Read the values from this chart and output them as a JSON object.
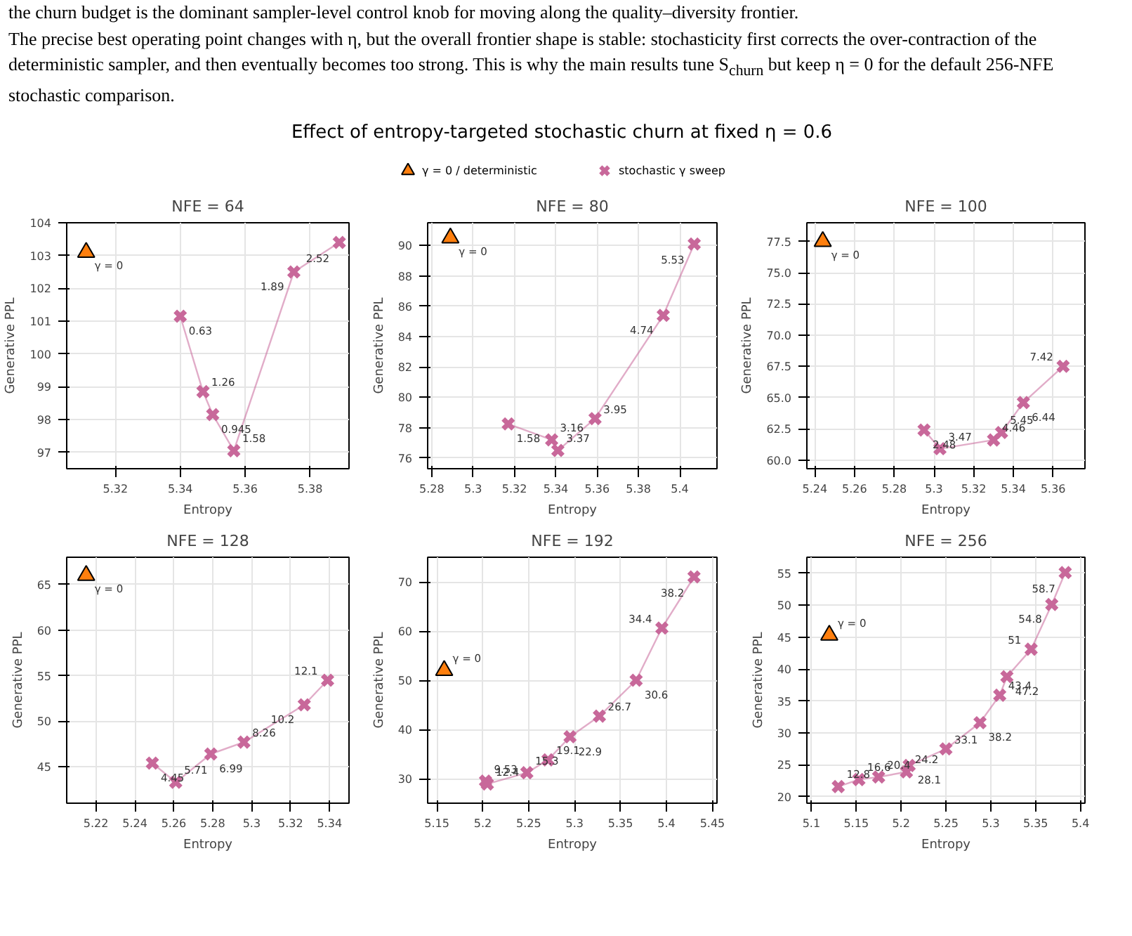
{
  "chart_data": [
    {
      "type": "other",
      "title": "Effect of entropy-targeted stochastic churn at fixed η = 0.6",
      "annotations": [
        "the churn budget is the dominant sampler-level control knob for moving along the quality–diversity frontier.",
        "The precise best operating point changes with η, but the overall frontier shape is stable: stochasticity first corrects the over-contraction of the deterministic sampler, and then eventually becomes too strong. This is why the main results tune S$_{churn}$ but keep η = 0 for the default 256-NFE stochastic comparison."
      ]
    },
    {
      "type": "scatter",
      "title": "NFE = 64",
      "xlabel": "Entropy",
      "ylabel": "Generative PPL",
      "xlim": [
        5.305,
        5.392
      ],
      "xticks": [
        5.32,
        5.34,
        5.36,
        5.38
      ],
      "ylim": [
        96.5,
        104
      ],
      "yticks": [
        97,
        98,
        99,
        100,
        101,
        102,
        103,
        104
      ],
      "grid": true,
      "legend": "top",
      "series": [
        {
          "name": "γ = 0 / deterministic",
          "type": "scatter",
          "marker": "triangle",
          "color": "#ff7f0e",
          "x": [
            5.311
          ],
          "values": [
            103.1
          ]
        },
        {
          "name": "stochastic γ sweep",
          "type": "line",
          "marker": "cross",
          "color": "#c8689a",
          "x": [
            5.34,
            5.347,
            5.35,
            5.3565,
            5.375,
            5.389
          ],
          "values": [
            101.15,
            98.85,
            98.15,
            97.05,
            102.5,
            103.4
          ]
        }
      ],
      "annotations": [
        {
          "text": "γ = 0",
          "x": 5.311,
          "y": 103.1
        },
        {
          "text": "0.63",
          "x": 5.34,
          "y": 101.15
        },
        {
          "text": "1.26",
          "x": 5.347,
          "y": 98.85
        },
        {
          "text": "0.945",
          "x": 5.35,
          "y": 98.15
        },
        {
          "text": "1.58",
          "x": 5.3565,
          "y": 97.05
        },
        {
          "text": "1.89",
          "x": 5.375,
          "y": 102.5
        },
        {
          "text": "2.52",
          "x": 5.389,
          "y": 103.4
        }
      ]
    },
    {
      "type": "scatter",
      "title": "NFE = 80",
      "xlabel": "Entropy",
      "ylabel": "Generative PPL",
      "xlim": [
        5.278,
        5.418
      ],
      "xticks": [
        5.28,
        5.3,
        5.32,
        5.34,
        5.36,
        5.38,
        5.4
      ],
      "ylim": [
        75.3,
        91.5
      ],
      "yticks": [
        76,
        78,
        80,
        82,
        84,
        86,
        88,
        90
      ],
      "grid": true,
      "series": [
        {
          "type": "scatter",
          "marker": "triangle",
          "color": "#ff7f0e",
          "x": [
            5.289
          ],
          "values": [
            90.5
          ]
        },
        {
          "type": "line",
          "marker": "cross",
          "color": "#c8689a",
          "x": [
            5.317,
            5.338,
            5.341,
            5.359,
            5.392,
            5.407
          ],
          "values": [
            78.25,
            77.2,
            76.5,
            78.6,
            85.4,
            90.1
          ]
        }
      ],
      "annotations": [
        {
          "text": "γ = 0",
          "x": 5.289,
          "y": 90.5
        },
        {
          "text": "1.58",
          "x": 5.317,
          "y": 78.25
        },
        {
          "text": "3.16",
          "x": 5.338,
          "y": 77.2
        },
        {
          "text": "3.37",
          "x": 5.341,
          "y": 76.5
        },
        {
          "text": "3.95",
          "x": 5.359,
          "y": 78.6
        },
        {
          "text": "4.74",
          "x": 5.392,
          "y": 85.4
        },
        {
          "text": "5.53",
          "x": 5.407,
          "y": 90.1
        }
      ]
    },
    {
      "type": "scatter",
      "title": "NFE = 100",
      "xlabel": "Entropy",
      "ylabel": "Generative PPL",
      "xlim": [
        5.236,
        5.376
      ],
      "xticks": [
        5.24,
        5.26,
        5.28,
        5.3,
        5.32,
        5.34,
        5.36
      ],
      "ylim": [
        59.3,
        79
      ],
      "yticks": [
        {
          "value": 60,
          "label": "60.0"
        },
        62.5,
        {
          "value": 65,
          "label": "65.0"
        },
        67.5,
        {
          "value": 70,
          "label": "70.0"
        },
        72.5,
        {
          "value": 75,
          "label": "75.0"
        },
        77.5
      ],
      "grid": true,
      "series": [
        {
          "type": "scatter",
          "marker": "triangle",
          "color": "#ff7f0e",
          "x": [
            5.244
          ],
          "values": [
            77.5
          ]
        },
        {
          "type": "line",
          "marker": "cross",
          "color": "#c8689a",
          "x": [
            5.295,
            5.303,
            5.33,
            5.334,
            5.345,
            5.365
          ],
          "values": [
            62.4,
            60.9,
            61.6,
            62.2,
            64.6,
            67.5
          ]
        }
      ],
      "annotations": [
        {
          "text": "γ = 0",
          "x": 5.244,
          "y": 77.5
        },
        {
          "text": "2.48",
          "x": 5.295,
          "y": 62.4
        },
        {
          "text": "3.47",
          "x": 5.303,
          "y": 60.9
        },
        {
          "text": "4.46",
          "x": 5.33,
          "y": 61.6
        },
        {
          "text": "5.45",
          "x": 5.334,
          "y": 62.2
        },
        {
          "text": "6.44",
          "x": 5.345,
          "y": 64.6
        },
        {
          "text": "7.42",
          "x": 5.365,
          "y": 67.5
        }
      ]
    },
    {
      "type": "scatter",
      "title": "NFE = 128",
      "xlabel": "Entropy",
      "ylabel": "Generative PPL",
      "xlim": [
        5.205,
        5.35
      ],
      "xticks": [
        5.22,
        5.24,
        5.26,
        5.28,
        5.3,
        5.32,
        5.34
      ],
      "ylim": [
        41,
        68
      ],
      "yticks": [
        45,
        50,
        55,
        60,
        65
      ],
      "grid": true,
      "series": [
        {
          "type": "scatter",
          "marker": "triangle",
          "color": "#ff7f0e",
          "x": [
            5.215
          ],
          "values": [
            66
          ]
        },
        {
          "type": "line",
          "marker": "cross",
          "color": "#c8689a",
          "x": [
            5.249,
            5.261,
            5.279,
            5.296,
            5.327,
            5.339
          ],
          "values": [
            45.4,
            43.3,
            46.4,
            47.7,
            51.8,
            54.5
          ]
        }
      ],
      "annotations": [
        {
          "text": "γ = 0",
          "x": 5.215,
          "y": 66
        },
        {
          "text": "4.45",
          "x": 5.249,
          "y": 45.4
        },
        {
          "text": "5.71",
          "x": 5.261,
          "y": 43.3
        },
        {
          "text": "6.99",
          "x": 5.279,
          "y": 46.4
        },
        {
          "text": "8.26",
          "x": 5.296,
          "y": 47.7
        },
        {
          "text": "10.2",
          "x": 5.327,
          "y": 51.8
        },
        {
          "text": "12.1",
          "x": 5.339,
          "y": 54.5
        }
      ]
    },
    {
      "type": "scatter",
      "title": "NFE = 192",
      "xlabel": "Entropy",
      "ylabel": "Generative PPL",
      "xlim": [
        5.14,
        5.455
      ],
      "xticks": [
        5.15,
        5.2,
        5.25,
        5.3,
        5.35,
        5.4,
        5.45
      ],
      "ylim": [
        25,
        75
      ],
      "yticks": [
        30,
        40,
        50,
        60,
        70
      ],
      "grid": true,
      "series": [
        {
          "type": "scatter",
          "marker": "triangle",
          "color": "#ff7f0e",
          "x": [
            5.158
          ],
          "values": [
            52
          ]
        },
        {
          "type": "line",
          "marker": "cross",
          "color": "#c8689a",
          "x": [
            5.203,
            5.205,
            5.248,
            5.271,
            5.295,
            5.327,
            5.367,
            5.395,
            5.43
          ],
          "values": [
            29.5,
            28.9,
            31.2,
            33.8,
            38.5,
            42.7,
            50,
            60.6,
            71
          ]
        }
      ],
      "annotations": [
        {
          "text": "γ = 0",
          "x": 5.158,
          "y": 52
        },
        {
          "text": "9.53",
          "x": 5.203,
          "y": 29.5
        },
        {
          "text": "12.4",
          "x": 5.205,
          "y": 28.9
        },
        {
          "text": "15.3",
          "x": 5.248,
          "y": 31.2
        },
        {
          "text": "19.1",
          "x": 5.271,
          "y": 33.8
        },
        {
          "text": "22.9",
          "x": 5.295,
          "y": 38.5
        },
        {
          "text": "26.7",
          "x": 5.327,
          "y": 42.7
        },
        {
          "text": "30.6",
          "x": 5.367,
          "y": 50
        },
        {
          "text": "34.4",
          "x": 5.395,
          "y": 60.6
        },
        {
          "text": "38.2",
          "x": 5.43,
          "y": 71
        }
      ]
    },
    {
      "type": "scatter",
      "title": "NFE = 256",
      "xlabel": "Entropy",
      "ylabel": "Generative PPL",
      "xlim": [
        5.095,
        5.405
      ],
      "xticks": [
        5.1,
        5.15,
        5.2,
        5.25,
        5.3,
        5.35,
        5.4
      ],
      "ylim": [
        19,
        57.5
      ],
      "yticks": [
        20,
        25,
        30,
        35,
        40,
        45,
        50,
        55
      ],
      "grid": true,
      "series": [
        {
          "type": "scatter",
          "marker": "triangle",
          "color": "#ff7f0e",
          "x": [
            5.12
          ],
          "values": [
            45.3
          ]
        },
        {
          "type": "line",
          "marker": "cross",
          "color": "#c8689a",
          "x": [
            5.13,
            5.153,
            5.175,
            5.206,
            5.209,
            5.25,
            5.288,
            5.31,
            5.318,
            5.345,
            5.368,
            5.383
          ],
          "values": [
            21.6,
            22.7,
            23.1,
            23.9,
            24.9,
            27.5,
            31.6,
            35.9,
            38.8,
            43.1,
            50.1,
            55.1
          ]
        }
      ],
      "annotations": [
        {
          "text": "γ = 0",
          "x": 5.12,
          "y": 45.3
        },
        {
          "text": "12.8",
          "x": 5.13,
          "y": 21.6
        },
        {
          "text": "16.6",
          "x": 5.153,
          "y": 22.7
        },
        {
          "text": "20.4",
          "x": 5.175,
          "y": 23.1
        },
        {
          "text": "24.2",
          "x": 5.206,
          "y": 23.9
        },
        {
          "text": "28.1",
          "x": 5.209,
          "y": 24.9
        },
        {
          "text": "33.1",
          "x": 5.25,
          "y": 27.5
        },
        {
          "text": "38.2",
          "x": 5.288,
          "y": 31.6
        },
        {
          "text": "43.4",
          "x": 5.31,
          "y": 35.9
        },
        {
          "text": "47.2",
          "x": 5.318,
          "y": 38.8
        },
        {
          "text": "51",
          "x": 5.345,
          "y": 43.1
        },
        {
          "text": "54.8",
          "x": 5.368,
          "y": 50.1
        },
        {
          "text": "58.7",
          "x": 5.383,
          "y": 55.1
        }
      ]
    }
  ]
}
